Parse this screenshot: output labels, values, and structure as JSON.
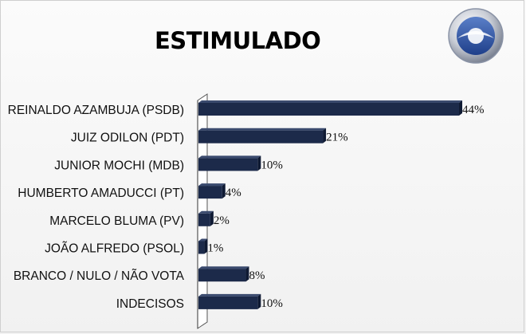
{
  "chart_data": {
    "type": "bar",
    "orientation": "horizontal",
    "title": "ESTIMULADO",
    "categories": [
      "REINALDO AZAMBUJA (PSDB)",
      "JUIZ ODILON (PDT)",
      "JUNIOR MOCHI (MDB)",
      "HUMBERTO AMADUCCI (PT)",
      "MARCELO BLUMA (PV)",
      "JOÃO ALFREDO (PSOL)",
      "BRANCO / NULO / NÃO VOTA",
      "INDECISOS"
    ],
    "values": [
      44,
      21,
      10,
      4,
      2,
      1,
      8,
      10
    ],
    "value_labels": [
      "44%",
      "21%",
      "10%",
      "4%",
      "2%",
      "1%",
      "8%",
      "10%"
    ],
    "unit": "%",
    "xlim": [
      0,
      44
    ],
    "grid": false,
    "legend": "none",
    "bar_color": "#1c2a4a"
  },
  "logo": {
    "name": "broadcaster-logo-icon"
  }
}
